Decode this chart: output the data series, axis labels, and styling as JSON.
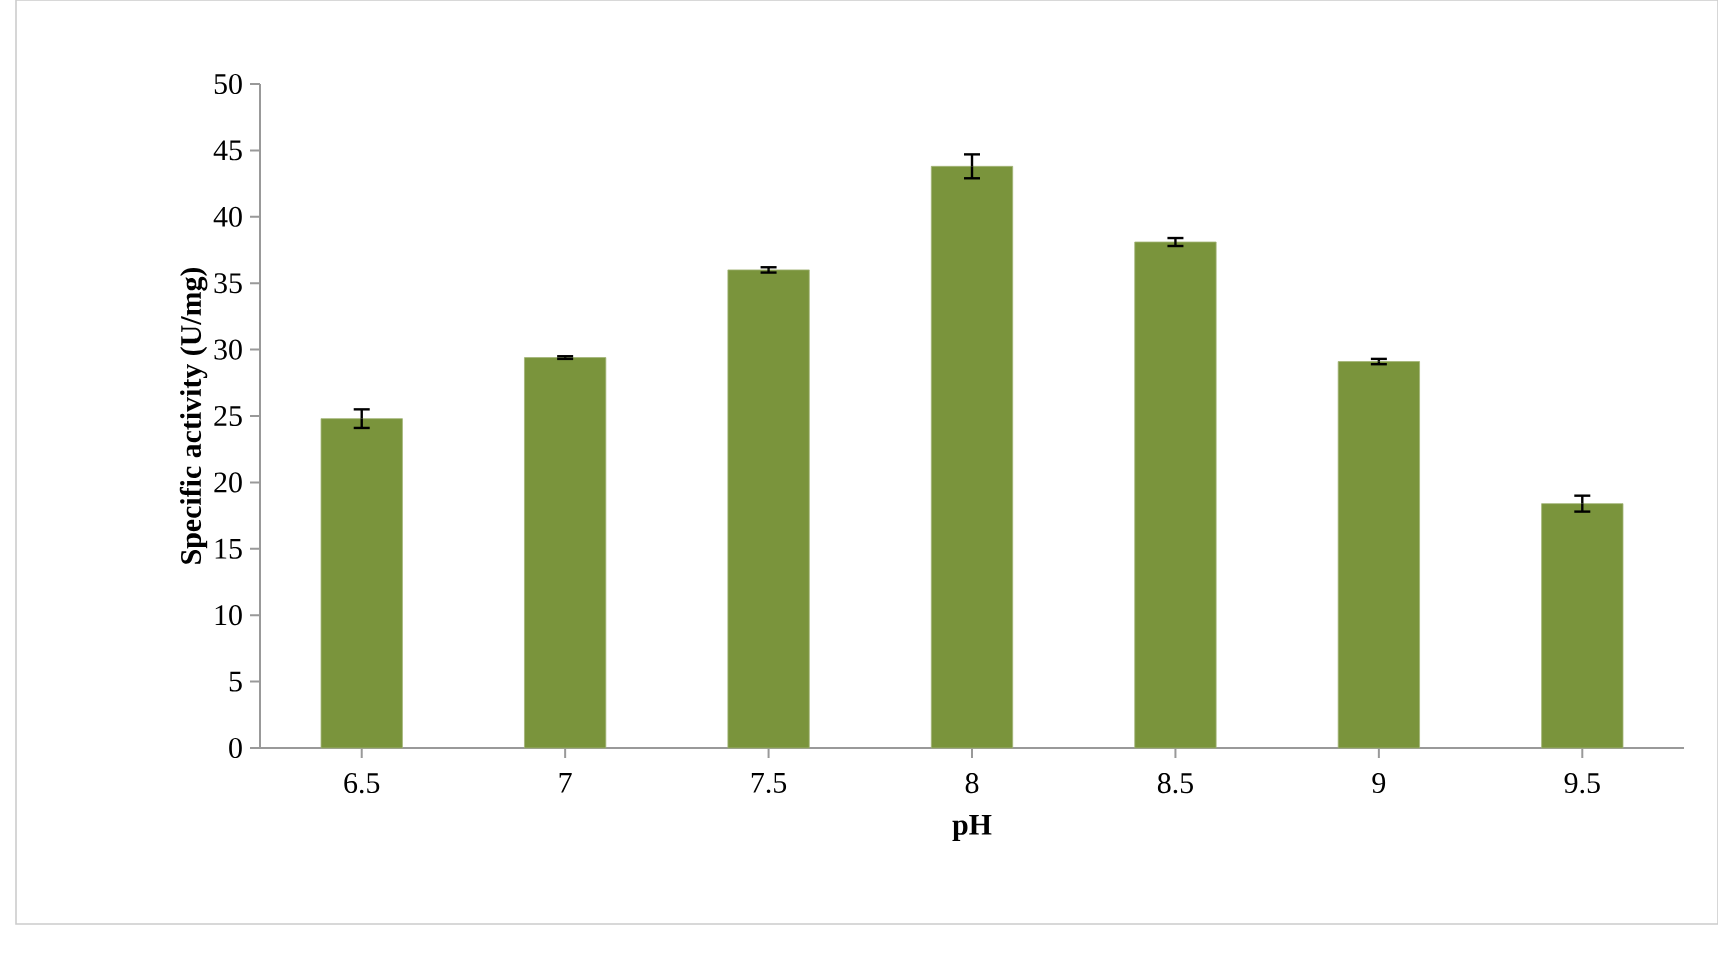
{
  "chart_data": {
    "type": "bar",
    "xlabel": "pH",
    "ylabel": "Specific activity (U/mg)",
    "categories": [
      "6.5",
      "7",
      "7.5",
      "8",
      "8.5",
      "9",
      "9.5"
    ],
    "values": [
      24.8,
      29.4,
      36.0,
      43.8,
      38.1,
      29.1,
      18.4
    ],
    "errors": [
      0.7,
      0.1,
      0.2,
      0.9,
      0.3,
      0.2,
      0.6
    ],
    "color": "#7a943c",
    "ylim": [
      0,
      50
    ],
    "yticks": [
      0,
      5,
      10,
      15,
      20,
      25,
      30,
      35,
      40,
      45,
      50
    ]
  }
}
